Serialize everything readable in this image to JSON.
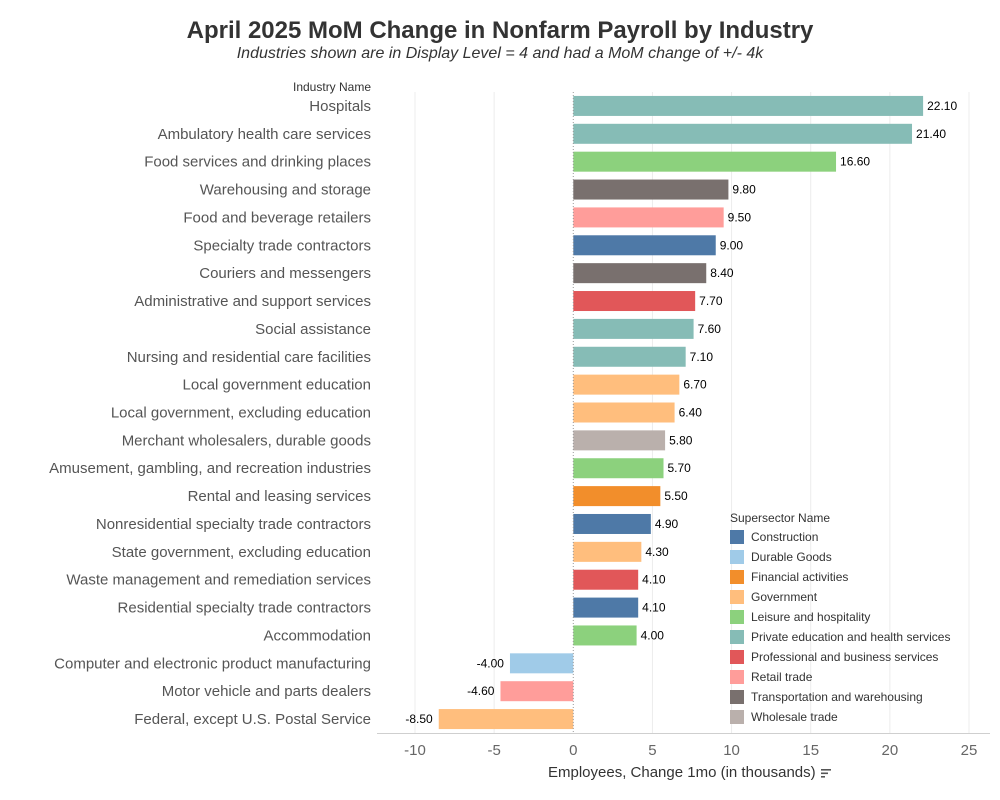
{
  "title": "April 2025 MoM Change in Nonfarm Payroll by Industry",
  "subtitle": "Industries shown are in Display Level = 4 and had a MoM change of +/- 4k",
  "column_header": "Industry Name",
  "legend_title": "Supersector Name",
  "sort_icon": "sort-descending-icon",
  "colors": {
    "Construction": "#4e79a7",
    "Durable Goods": "#a0cbe8",
    "Financial activities": "#f28e2b",
    "Government": "#ffbe7d",
    "Leisure and hospitality": "#8cd17d",
    "Private education and health services": "#86bcb6",
    "Professional and business services": "#e15759",
    "Retail trade": "#ff9d9a",
    "Transportation and warehousing": "#79706e",
    "Wholesale trade": "#bab0ac"
  },
  "legend": [
    "Construction",
    "Durable Goods",
    "Financial activities",
    "Government",
    "Leisure and hospitality",
    "Private education and health services",
    "Professional and business services",
    "Retail trade",
    "Transportation and warehousing",
    "Wholesale trade"
  ],
  "chart_data": {
    "type": "bar",
    "orientation": "horizontal",
    "title": "April 2025 MoM Change in Nonfarm Payroll by Industry",
    "xlabel": "Employees, Change 1mo (in thousands)",
    "ylabel": "Industry Name",
    "xlim": [
      -10,
      25
    ],
    "xticks": [
      "-10",
      "-5",
      "0",
      "5",
      "10",
      "15",
      "20",
      "25"
    ],
    "grid": true,
    "legend_position": "bottom-right",
    "bars": [
      {
        "category": "Hospitals",
        "value": 22.1,
        "label": "22.10",
        "group": "Private education and health services"
      },
      {
        "category": "Ambulatory health care services",
        "value": 21.4,
        "label": "21.40",
        "group": "Private education and health services"
      },
      {
        "category": "Food services and drinking places",
        "value": 16.6,
        "label": "16.60",
        "group": "Leisure and hospitality"
      },
      {
        "category": "Warehousing and storage",
        "value": 9.8,
        "label": "9.80",
        "group": "Transportation and warehousing"
      },
      {
        "category": "Food and beverage retailers",
        "value": 9.5,
        "label": "9.50",
        "group": "Retail trade"
      },
      {
        "category": "Specialty trade contractors",
        "value": 9.0,
        "label": "9.00",
        "group": "Construction"
      },
      {
        "category": "Couriers and messengers",
        "value": 8.4,
        "label": "8.40",
        "group": "Transportation and warehousing"
      },
      {
        "category": "Administrative and support services",
        "value": 7.7,
        "label": "7.70",
        "group": "Professional and business services"
      },
      {
        "category": "Social assistance",
        "value": 7.6,
        "label": "7.60",
        "group": "Private education and health services"
      },
      {
        "category": "Nursing and residential care facilities",
        "value": 7.1,
        "label": "7.10",
        "group": "Private education and health services"
      },
      {
        "category": "Local government education",
        "value": 6.7,
        "label": "6.70",
        "group": "Government"
      },
      {
        "category": "Local government, excluding education",
        "value": 6.4,
        "label": "6.40",
        "group": "Government"
      },
      {
        "category": "Merchant wholesalers, durable goods",
        "value": 5.8,
        "label": "5.80",
        "group": "Wholesale trade"
      },
      {
        "category": "Amusement, gambling, and recreation industries",
        "value": 5.7,
        "label": "5.70",
        "group": "Leisure and hospitality"
      },
      {
        "category": "Rental and leasing services",
        "value": 5.5,
        "label": "5.50",
        "group": "Financial activities"
      },
      {
        "category": "Nonresidential specialty trade contractors",
        "value": 4.9,
        "label": "4.90",
        "group": "Construction"
      },
      {
        "category": "State government, excluding education",
        "value": 4.3,
        "label": "4.30",
        "group": "Government"
      },
      {
        "category": "Waste management and remediation services",
        "value": 4.1,
        "label": "4.10",
        "group": "Professional and business services"
      },
      {
        "category": "Residential specialty trade contractors",
        "value": 4.1,
        "label": "4.10",
        "group": "Construction"
      },
      {
        "category": "Accommodation",
        "value": 4.0,
        "label": "4.00",
        "group": "Leisure and hospitality"
      },
      {
        "category": "Computer and electronic product manufacturing",
        "value": -4.0,
        "label": "-4.00",
        "group": "Durable Goods"
      },
      {
        "category": "Motor vehicle and parts dealers",
        "value": -4.6,
        "label": "-4.60",
        "group": "Retail trade"
      },
      {
        "category": "Federal, except U.S. Postal Service",
        "value": -8.5,
        "label": "-8.50",
        "group": "Government"
      }
    ]
  }
}
